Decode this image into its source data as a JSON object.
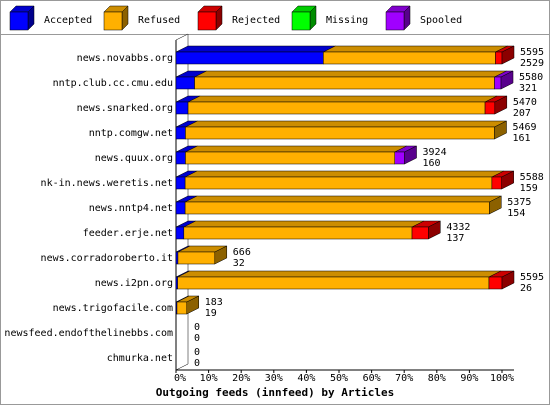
{
  "chart_data": {
    "type": "bar",
    "orientation": "horizontal",
    "stacked": true,
    "title": "Outgoing feeds (innfeed) by Articles",
    "categories": [
      "news.novabbs.org",
      "nntp.club.cc.cmu.edu",
      "news.snarked.org",
      "nntp.comgw.net",
      "news.quux.org",
      "nk-in.news.weretis.net",
      "news.nntp4.net",
      "feeder.erje.net",
      "news.corradoroberto.it",
      "news.i2pn.org",
      "news.trigofacile.com",
      "newsfeed.endofthelinebbs.com",
      "chmurka.net"
    ],
    "offered": [
      5595,
      5580,
      5470,
      5469,
      3924,
      5588,
      5375,
      4332,
      666,
      5595,
      183,
      0,
      0
    ],
    "accepted": [
      2529,
      321,
      207,
      161,
      160,
      159,
      154,
      137,
      32,
      26,
      19,
      0,
      0
    ],
    "series": [
      {
        "name": "Accepted",
        "color": "#0000ff",
        "values": [
          45.2,
          5.7,
          3.7,
          2.9,
          2.9,
          2.8,
          2.8,
          2.4,
          0.6,
          0.5,
          0.3,
          0,
          0
        ]
      },
      {
        "name": "Refused",
        "color": "#ffb000",
        "values": [
          52.8,
          92.0,
          91.1,
          94.8,
          64.2,
          94.1,
          93.3,
          70.0,
          11.3,
          95.5,
          3.0,
          0,
          0
        ]
      },
      {
        "name": "Rejected",
        "color": "#ff0000",
        "values": [
          2.0,
          0,
          3.0,
          0,
          0,
          3.0,
          0,
          5.0,
          0,
          4.0,
          0,
          0,
          0
        ]
      },
      {
        "name": "Missing",
        "color": "#00ff00",
        "values": [
          0,
          0,
          0,
          0,
          0,
          0,
          0,
          0,
          0,
          0,
          0,
          0,
          0
        ]
      },
      {
        "name": "Spooled",
        "color": "#a000ff",
        "values": [
          0,
          2.0,
          0,
          0,
          3.0,
          0,
          0,
          0,
          0,
          0,
          0,
          0,
          0
        ]
      }
    ],
    "xlim": [
      0,
      100
    ],
    "xticks": [
      {
        "value": 0,
        "label": "0%"
      },
      {
        "value": 10,
        "label": "10%"
      },
      {
        "value": 20,
        "label": "20%"
      },
      {
        "value": 30,
        "label": "30%"
      },
      {
        "value": 40,
        "label": "40%"
      },
      {
        "value": 50,
        "label": "50%"
      },
      {
        "value": 60,
        "label": "60%"
      },
      {
        "value": 70,
        "label": "70%"
      },
      {
        "value": 80,
        "label": "80%"
      },
      {
        "value": 90,
        "label": "90%"
      },
      {
        "value": 100,
        "label": "100%"
      }
    ]
  }
}
